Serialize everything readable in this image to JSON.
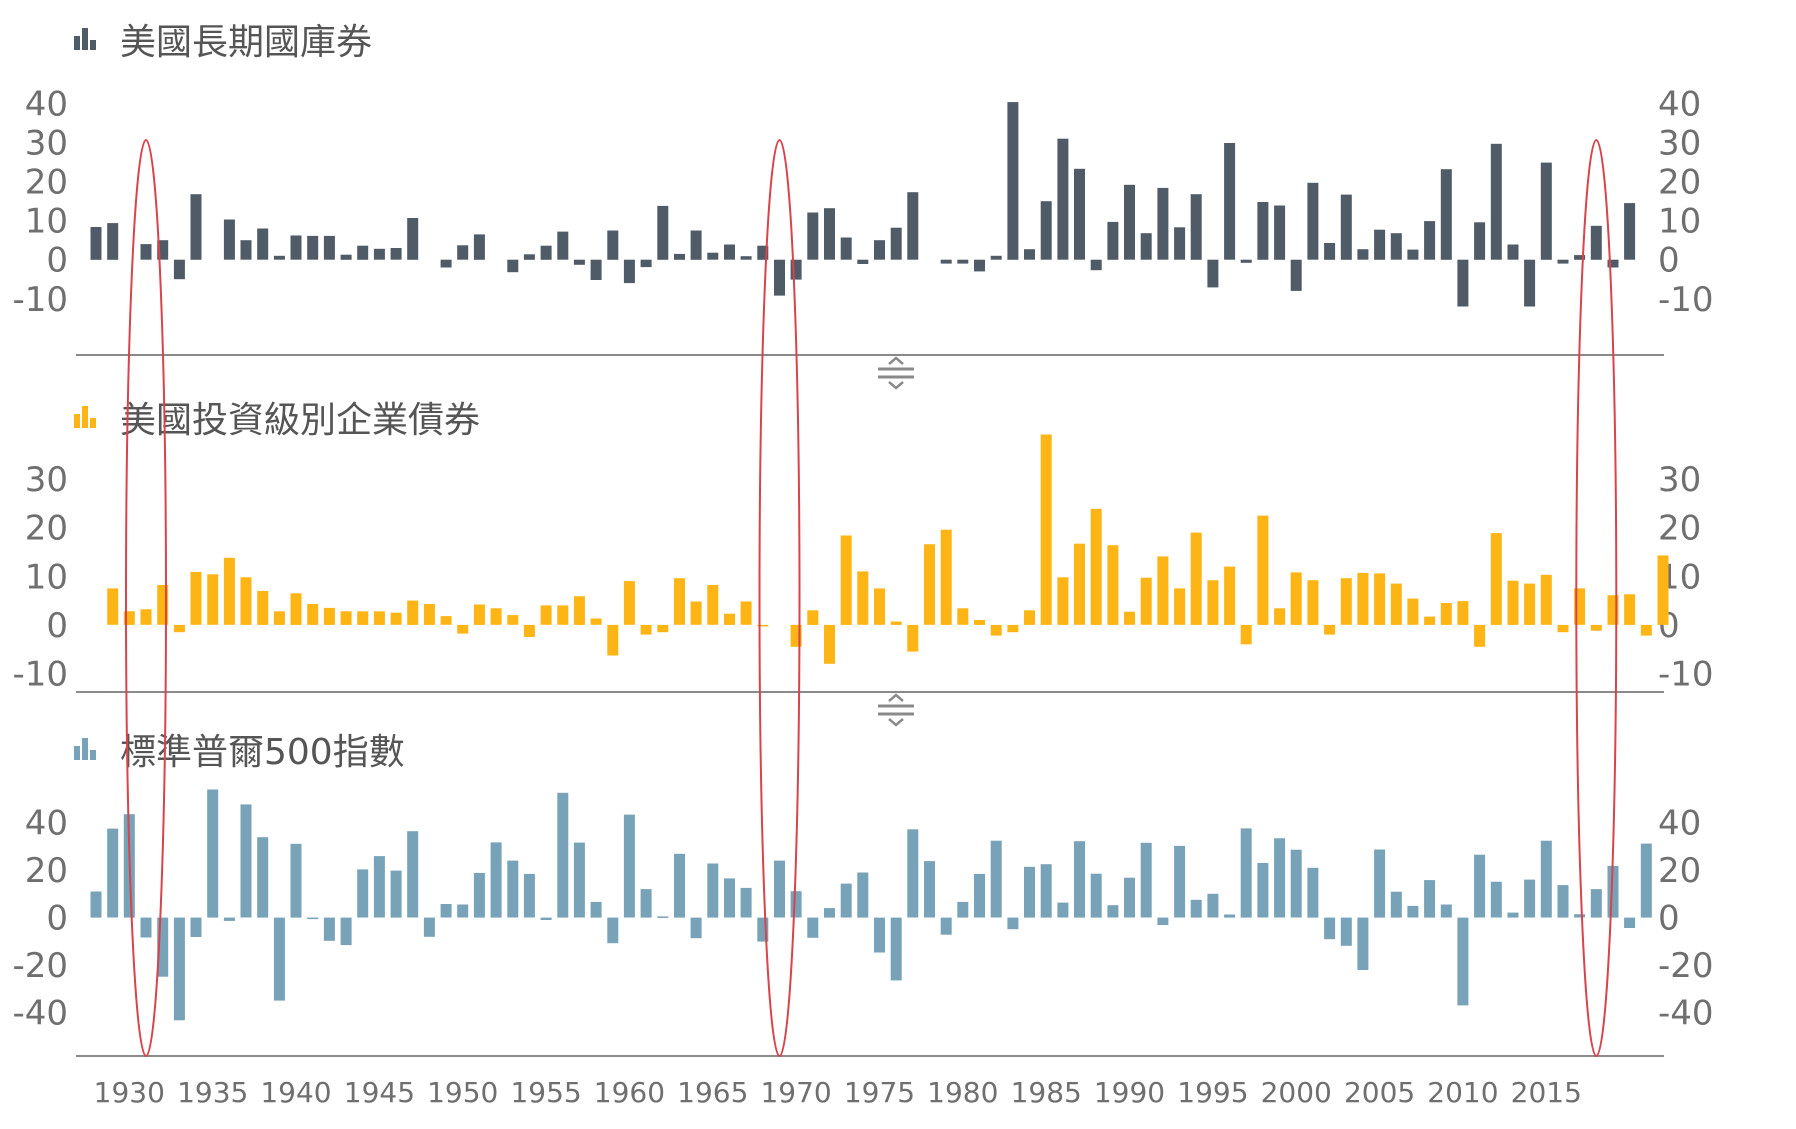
{
  "chart_data": [
    {
      "type": "bar",
      "title": "美國長期國庫券",
      "x_start": 1928,
      "yticks": [
        "40",
        "30",
        "20",
        "10",
        "0",
        "-10"
      ],
      "ylim": [
        -18,
        44
      ],
      "color": "#4f5b66",
      "values": [
        8.4,
        9.4,
        null,
        4.0,
        5.0,
        -5.0,
        16.8,
        null,
        10.3,
        5.0,
        8.0,
        1.0,
        6.2,
        6.1,
        6.1,
        1.3,
        3.6,
        2.8,
        3.0,
        10.7,
        null,
        -2.0,
        3.7,
        6.5,
        null,
        -3.2,
        1.4,
        3.6,
        7.2,
        -1.3,
        -5.2,
        7.5,
        -6.0,
        -1.9,
        13.8,
        1.5,
        7.5,
        1.8,
        3.9,
        0.9,
        3.6,
        -9.2,
        -5.1,
        12.1,
        13.2,
        5.7,
        -1.1,
        5.0,
        8.2,
        17.3,
        null,
        -1.0,
        -1.0,
        -3.0,
        1.0,
        40.4,
        2.7,
        15.0,
        31.0,
        23.3,
        -2.7,
        9.7,
        19.2,
        6.8,
        18.4,
        8.3,
        16.8,
        -7.1,
        29.9,
        -0.8,
        14.8,
        13.9,
        -8.0,
        19.7,
        4.3,
        16.7,
        2.7,
        7.7,
        6.8,
        2.6,
        9.9,
        23.2,
        -12.0,
        9.6,
        29.7,
        3.9,
        -12.0,
        24.9,
        -1.0,
        1.2,
        8.7,
        -2.0,
        14.5
      ]
    },
    {
      "type": "bar",
      "title": "美國投資級別企業債券",
      "x_start": 1928,
      "yticks": [
        "30",
        "20",
        "10",
        "0",
        "-10"
      ],
      "ylim": [
        -13,
        43
      ],
      "color": "#fdb515",
      "values": [
        null,
        7.5,
        2.8,
        3.2,
        8.2,
        -1.5,
        10.9,
        10.4,
        13.8,
        9.8,
        7.0,
        2.8,
        6.5,
        4.3,
        3.5,
        2.8,
        2.8,
        2.8,
        2.5,
        5.0,
        4.3,
        1.8,
        -1.8,
        4.2,
        3.4,
        2.0,
        -2.5,
        4.0,
        4.0,
        5.9,
        1.3,
        -6.3,
        9.0,
        -2.0,
        -1.5,
        9.6,
        4.8,
        8.2,
        2.3,
        4.8,
        -0.3,
        null,
        -4.5,
        3.0,
        -8.0,
        18.4,
        11.0,
        7.5,
        0.7,
        -5.5,
        16.6,
        19.6,
        3.4,
        1.0,
        -2.2,
        -1.5,
        3.0,
        39.2,
        9.8,
        16.7,
        23.9,
        16.4,
        2.7,
        9.7,
        14.1,
        7.5,
        19.0,
        9.2,
        12.0,
        -4.0,
        22.5,
        3.4,
        10.8,
        9.2,
        -2.0,
        9.6,
        10.7,
        10.6,
        8.5,
        5.4,
        1.7,
        4.5,
        4.9,
        -4.5,
        18.9,
        9.1,
        8.5,
        10.3,
        -1.5,
        7.5,
        -1.2,
        6.1,
        6.3,
        -2.2,
        14.3
      ]
    },
    {
      "type": "bar",
      "title": "標準普爾500指數",
      "x_start": 1928,
      "yticks": [
        "40",
        "20",
        "0",
        "-20",
        "-40"
      ],
      "ylim": [
        -55,
        58
      ],
      "color": "#78a2b8",
      "values": [
        11.0,
        37.5,
        43.6,
        -8.4,
        -24.9,
        -43.3,
        -8.2,
        54.0,
        -1.4,
        47.7,
        33.9,
        -35.0,
        31.1,
        -0.4,
        -9.8,
        -11.6,
        20.3,
        25.9,
        19.8,
        36.4,
        -8.1,
        5.7,
        5.5,
        18.8,
        31.7,
        24.0,
        18.4,
        -1.0,
        52.6,
        31.6,
        6.6,
        -10.8,
        43.4,
        12.0,
        0.5,
        26.9,
        -8.7,
        22.8,
        16.5,
        12.5,
        -10.1,
        24.0,
        11.1,
        -8.5,
        4.0,
        14.3,
        19.0,
        -14.7,
        -26.5,
        37.2,
        23.8,
        -7.2,
        6.6,
        18.4,
        32.4,
        -4.9,
        21.4,
        22.5,
        6.3,
        32.2,
        18.5,
        5.2,
        16.8,
        31.5,
        -3.1,
        30.2,
        7.5,
        10.0,
        1.3,
        37.6,
        23.0,
        33.4,
        28.6,
        21.0,
        -9.1,
        -11.9,
        -22.1,
        28.7,
        10.9,
        4.9,
        15.8,
        5.5,
        -37.0,
        26.5,
        15.1,
        2.1,
        16.0,
        32.4,
        13.7,
        1.4,
        12.0,
        21.8,
        -4.4,
        31.2
      ]
    }
  ],
  "x_axis": {
    "labels": [
      "1930",
      "1935",
      "1940",
      "1945",
      "1950",
      "1955",
      "1960",
      "1965",
      "1970",
      "1975",
      "1980",
      "1985",
      "1990",
      "1995",
      "2000",
      "2005",
      "2010",
      "2015"
    ]
  },
  "colors": {
    "highlight_ellipse": "#d9434b",
    "axis": "#8a8a8a",
    "splitter_icon": "#8a8a8a"
  },
  "highlight_years": [
    1931,
    1969,
    2018
  ]
}
